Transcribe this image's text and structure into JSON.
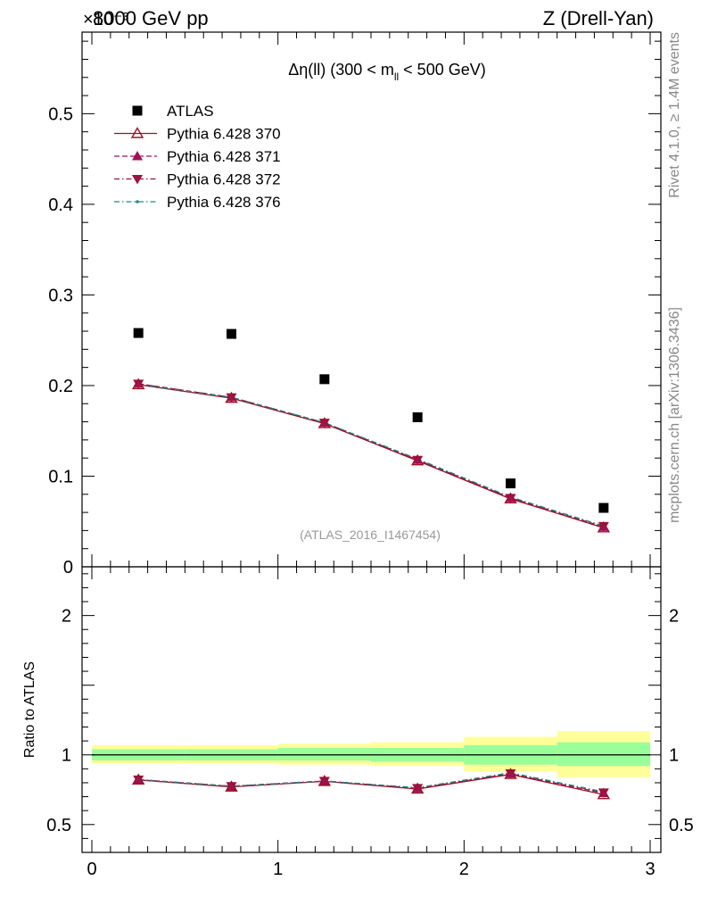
{
  "header": {
    "energy_label": "8000 GeV pp",
    "process_label": "Z (Drell-Yan)",
    "scale_label": "×10⁻³"
  },
  "side": {
    "rivet_label": "Rivet 4.1.0, ≥ 1.4M events",
    "mcplots_label": "mcplots.cern.ch [arXiv:1306.3436]"
  },
  "colors": {
    "data": "#000000",
    "p370": "#a01020",
    "p371": "#a0105a",
    "p372": "#a01040",
    "p376": "#109080",
    "band_yellow": "#ffff99",
    "band_green": "#99ff99"
  },
  "chart_data": [
    {
      "type": "scatter",
      "title": "Δη(ll) (300 < m_ll < 500 GeV)",
      "title_parts": {
        "prefix": "Δη(ll) (300 < m",
        "subscript": "ll",
        "suffix": " < 500 GeV)"
      },
      "watermark": "(ATLAS_2016_I1467454)",
      "xlim": [
        0,
        3
      ],
      "ylim": [
        0,
        0.59
      ],
      "y_scale_label": "×10⁻³",
      "yticks": [
        0,
        0.1,
        0.2,
        0.3,
        0.4,
        0.5
      ],
      "ytick_labels": [
        "0",
        "0.1",
        "0.2",
        "0.3",
        "0.4",
        "0.5"
      ],
      "legend_position": "top-left",
      "x": [
        0.25,
        0.75,
        1.25,
        1.75,
        2.25,
        2.75
      ],
      "series": [
        {
          "name": "ATLAS",
          "key": "data",
          "marker": "square",
          "values": [
            0.258,
            0.257,
            0.207,
            0.165,
            0.092,
            0.065
          ]
        },
        {
          "name": "Pythia 6.428 370",
          "key": "p370",
          "marker": "triangle-open",
          "line": "solid",
          "values": [
            0.201,
            0.186,
            0.158,
            0.117,
            0.075,
            0.043
          ]
        },
        {
          "name": "Pythia 6.428 371",
          "key": "p371",
          "marker": "triangle-filled",
          "line": "dashed",
          "values": [
            0.202,
            0.187,
            0.159,
            0.118,
            0.076,
            0.044
          ]
        },
        {
          "name": "Pythia 6.428 372",
          "key": "p372",
          "marker": "triangle-down",
          "line": "dashdot",
          "values": [
            0.202,
            0.187,
            0.159,
            0.118,
            0.076,
            0.045
          ]
        },
        {
          "name": "Pythia 6.428 376",
          "key": "p376",
          "marker": "dot",
          "line": "dashdot",
          "values": [
            0.201,
            0.187,
            0.159,
            0.119,
            0.077,
            0.045
          ]
        }
      ]
    },
    {
      "type": "line",
      "ylabel": "Ratio to ATLAS",
      "xlim": [
        0,
        3
      ],
      "ylim": [
        0.3,
        2.35
      ],
      "xticks": [
        0,
        1,
        2,
        3
      ],
      "xtick_labels": [
        "0",
        "1",
        "2",
        "3"
      ],
      "yticks": [
        0.5,
        1,
        2
      ],
      "ytick_labels": [
        "0.5",
        "1",
        "2"
      ],
      "bin_edges": [
        0,
        0.5,
        1,
        1.5,
        2,
        2.5,
        3
      ],
      "band_yellow": {
        "low": [
          0.94,
          0.94,
          0.93,
          0.92,
          0.88,
          0.84
        ],
        "high": [
          1.07,
          1.07,
          1.08,
          1.09,
          1.13,
          1.17
        ]
      },
      "band_green": {
        "low": [
          0.96,
          0.96,
          0.96,
          0.95,
          0.93,
          0.92
        ],
        "high": [
          1.04,
          1.04,
          1.05,
          1.05,
          1.07,
          1.09
        ]
      },
      "x": [
        0.25,
        0.75,
        1.25,
        1.75,
        2.25,
        2.75
      ],
      "series": [
        {
          "name": "Pythia 6.428 370",
          "key": "p370",
          "marker": "triangle-open",
          "line": "solid",
          "values": [
            0.82,
            0.77,
            0.81,
            0.755,
            0.86,
            0.715
          ]
        },
        {
          "name": "Pythia 6.428 371",
          "key": "p371",
          "marker": "triangle-filled",
          "line": "dashed",
          "values": [
            0.822,
            0.774,
            0.812,
            0.76,
            0.865,
            0.725
          ]
        },
        {
          "name": "Pythia 6.428 372",
          "key": "p372",
          "marker": "triangle-down",
          "line": "dashdot",
          "values": [
            0.823,
            0.776,
            0.813,
            0.762,
            0.868,
            0.73
          ]
        },
        {
          "name": "Pythia 6.428 376",
          "key": "p376",
          "marker": "dot",
          "line": "dashdot",
          "values": [
            0.82,
            0.775,
            0.812,
            0.765,
            0.872,
            0.735
          ]
        }
      ]
    }
  ]
}
